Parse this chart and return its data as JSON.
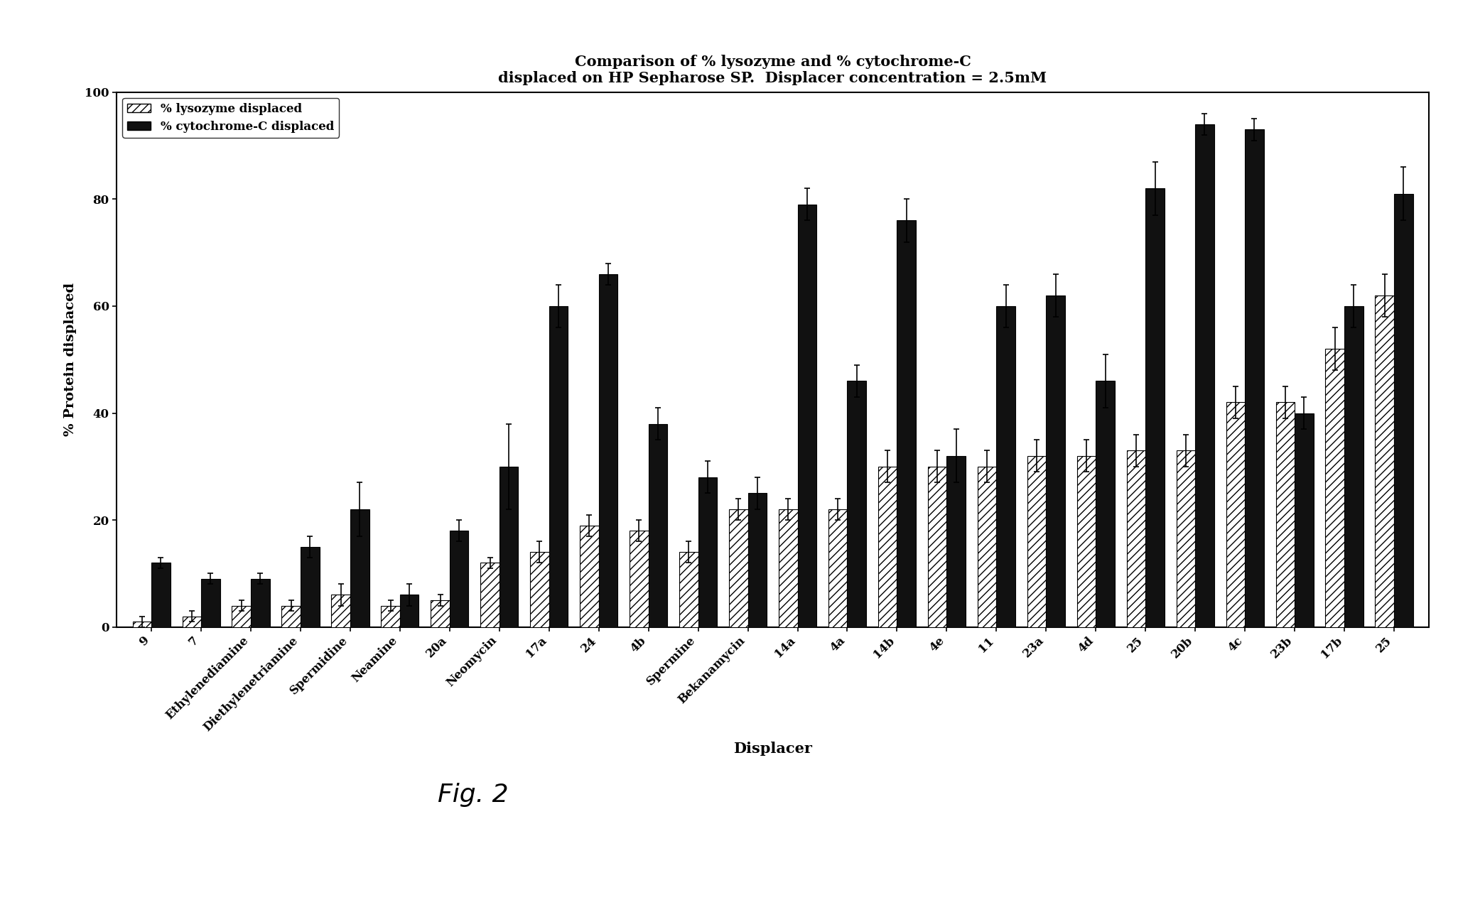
{
  "title_line1": "Comparison of % lysozyme and % cytochrome-C",
  "title_line2": "displaced on HP Sepharose SP.  Displacer concentration = 2.5mM",
  "xlabel": "Displacer",
  "ylabel": "% Protein displaced",
  "ylim": [
    0,
    100
  ],
  "yticks": [
    0,
    20,
    40,
    60,
    80,
    100
  ],
  "categories": [
    "9",
    "7",
    "Ethylenediamine",
    "Diethylenetriamine",
    "Spermidine",
    "Neamine",
    "20a",
    "Neomycin",
    "17a",
    "24",
    "4b",
    "Spermine",
    "Bekanamycin",
    "14a",
    "4a",
    "14b",
    "4e",
    "11",
    "23a",
    "4d",
    "25",
    "20b",
    "4c",
    "23b",
    "17b",
    "25"
  ],
  "lysozyme": [
    1,
    2,
    4,
    4,
    6,
    4,
    5,
    12,
    14,
    19,
    18,
    14,
    22,
    22,
    22,
    30,
    30,
    30,
    32,
    32,
    33,
    33,
    42,
    42,
    52,
    62
  ],
  "lysozyme_err": [
    1,
    1,
    1,
    1,
    2,
    1,
    1,
    1,
    2,
    2,
    2,
    2,
    2,
    2,
    2,
    3,
    3,
    3,
    3,
    3,
    3,
    3,
    3,
    3,
    4,
    4
  ],
  "cytochrome": [
    12,
    9,
    9,
    15,
    22,
    6,
    18,
    30,
    60,
    66,
    38,
    28,
    25,
    79,
    46,
    76,
    32,
    60,
    62,
    46,
    82,
    94,
    93,
    40,
    60,
    81
  ],
  "cytochrome_err": [
    1,
    1,
    1,
    2,
    5,
    2,
    2,
    8,
    4,
    2,
    3,
    3,
    3,
    3,
    3,
    4,
    5,
    4,
    4,
    5,
    5,
    2,
    2,
    3,
    4,
    5
  ],
  "cytochrome_color": "#111111",
  "background_color": "#ffffff",
  "legend_lysozyme": "% lysozyme displaced",
  "legend_cytochrome": "% cytochrome-C displaced",
  "fig_note": "Fig. 2"
}
